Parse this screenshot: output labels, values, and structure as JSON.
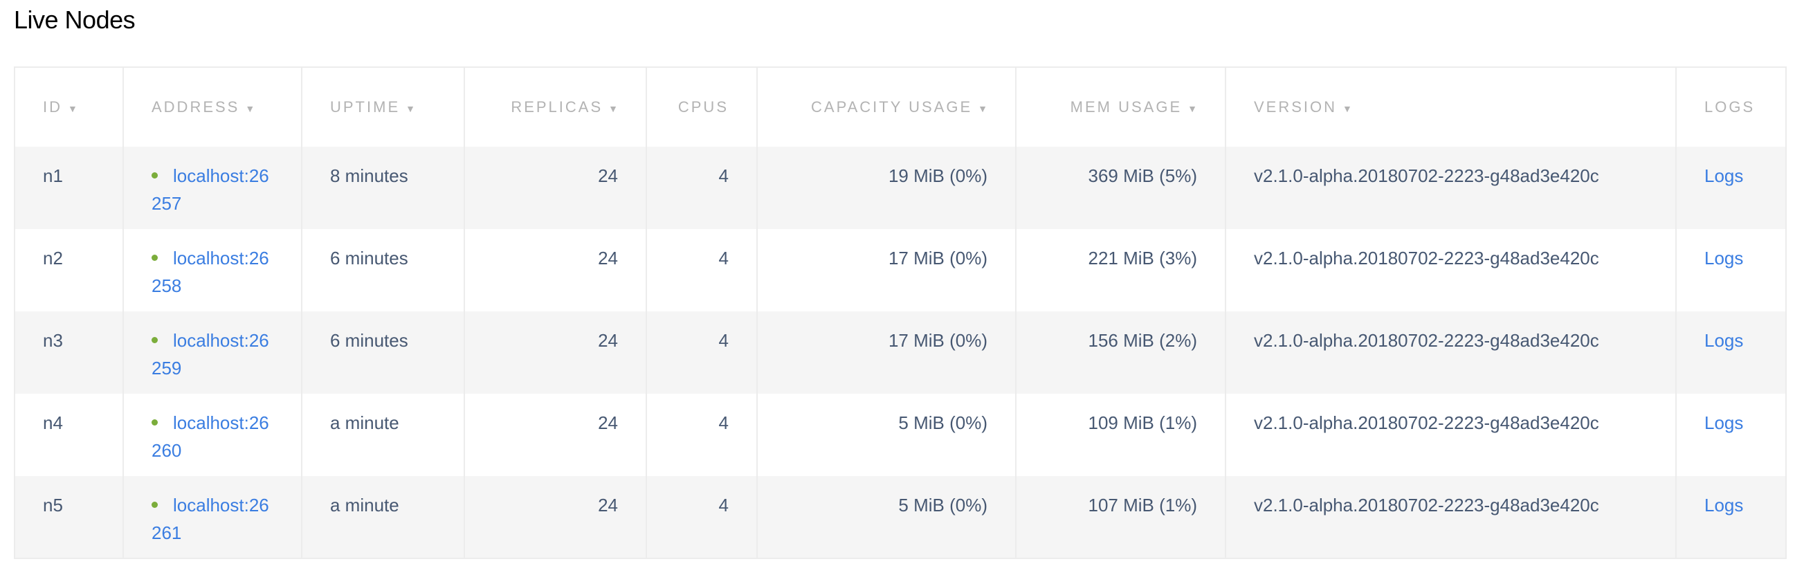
{
  "title": "Live Nodes",
  "colors": {
    "link": "#3a7de1",
    "status_live": "#7bad3b",
    "header_text": "#b3b3b3",
    "body_text": "#475872"
  },
  "columns": [
    {
      "label": "ID",
      "sortable": true
    },
    {
      "label": "ADDRESS",
      "sortable": true
    },
    {
      "label": "UPTIME",
      "sortable": true
    },
    {
      "label": "REPLICAS",
      "sortable": true
    },
    {
      "label": "CPUS",
      "sortable": false
    },
    {
      "label": "CAPACITY USAGE",
      "sortable": true
    },
    {
      "label": "MEM USAGE",
      "sortable": true
    },
    {
      "label": "VERSION",
      "sortable": true
    },
    {
      "label": "LOGS",
      "sortable": false
    }
  ],
  "sort_icon": "triangle-down",
  "rows": [
    {
      "id": "n1",
      "address": "localhost:26257",
      "uptime": "8 minutes",
      "replicas": "24",
      "cpus": "4",
      "capacity": "19 MiB (0%)",
      "mem": "369 MiB (5%)",
      "version": "v2.1.0-alpha.20180702-2223-g48ad3e420c",
      "logs": "Logs"
    },
    {
      "id": "n2",
      "address": "localhost:26258",
      "uptime": "6 minutes",
      "replicas": "24",
      "cpus": "4",
      "capacity": "17 MiB (0%)",
      "mem": "221 MiB (3%)",
      "version": "v2.1.0-alpha.20180702-2223-g48ad3e420c",
      "logs": "Logs"
    },
    {
      "id": "n3",
      "address": "localhost:26259",
      "uptime": "6 minutes",
      "replicas": "24",
      "cpus": "4",
      "capacity": "17 MiB (0%)",
      "mem": "156 MiB (2%)",
      "version": "v2.1.0-alpha.20180702-2223-g48ad3e420c",
      "logs": "Logs"
    },
    {
      "id": "n4",
      "address": "localhost:26260",
      "uptime": "a minute",
      "replicas": "24",
      "cpus": "4",
      "capacity": "5 MiB (0%)",
      "mem": "109 MiB (1%)",
      "version": "v2.1.0-alpha.20180702-2223-g48ad3e420c",
      "logs": "Logs"
    },
    {
      "id": "n5",
      "address": "localhost:26261",
      "uptime": "a minute",
      "replicas": "24",
      "cpus": "4",
      "capacity": "5 MiB (0%)",
      "mem": "107 MiB (1%)",
      "version": "v2.1.0-alpha.20180702-2223-g48ad3e420c",
      "logs": "Logs"
    }
  ]
}
